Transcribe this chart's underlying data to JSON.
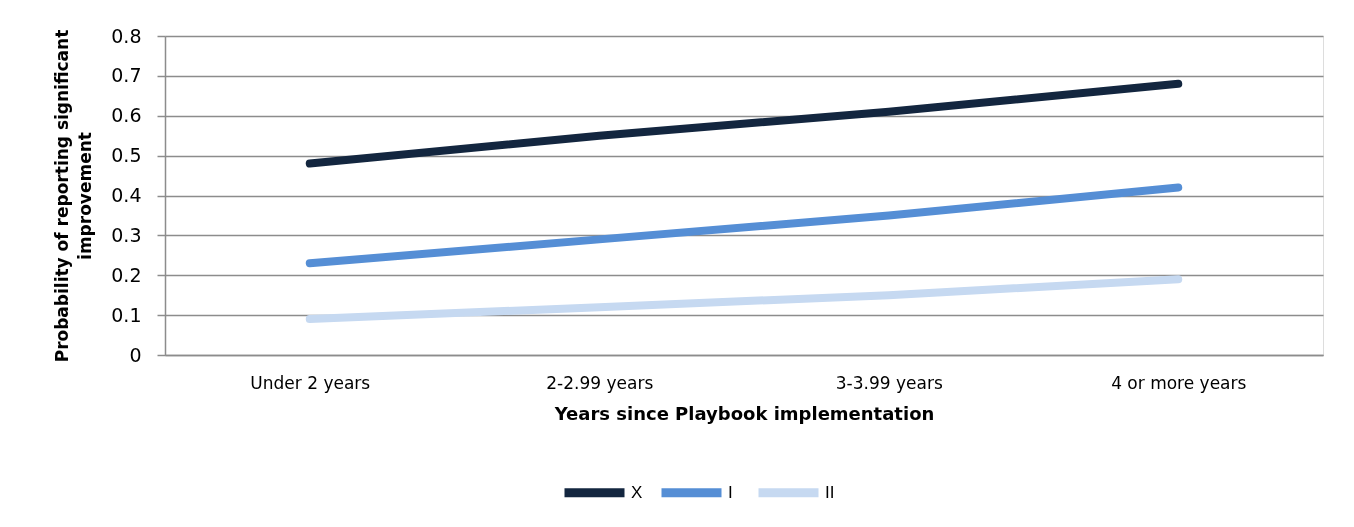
{
  "chart_data": {
    "type": "line",
    "xlabel": "Years since Playbook implementation",
    "ylabel": "Probability of reporting significant improvement",
    "categories": [
      "Under 2 years",
      "2-2.99 years",
      "3-3.99 years",
      "4 or more years"
    ],
    "series": [
      {
        "name": "X",
        "color": "#13263f",
        "values": [
          0.48,
          0.55,
          0.61,
          0.68
        ]
      },
      {
        "name": "I",
        "color": "#558ed5",
        "values": [
          0.23,
          0.29,
          0.35,
          0.42
        ]
      },
      {
        "name": "II",
        "color": "#c6d9f1",
        "values": [
          0.09,
          0.12,
          0.15,
          0.19
        ]
      }
    ],
    "ylim": [
      0,
      0.8
    ],
    "yticks": [
      0,
      0.1,
      0.2,
      0.3,
      0.4,
      0.5,
      0.6,
      0.7,
      0.8
    ],
    "grid": "y",
    "legend": "bottom",
    "marker": "none",
    "line_style": "solid"
  }
}
